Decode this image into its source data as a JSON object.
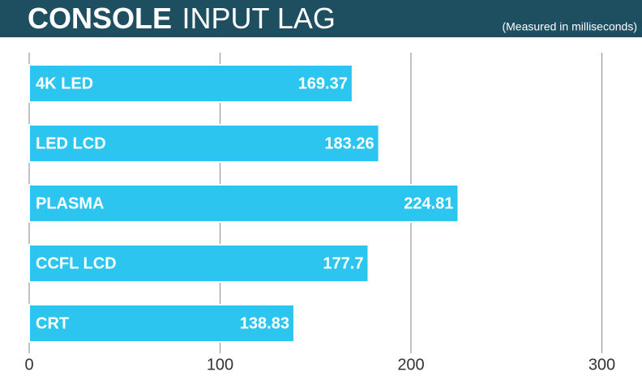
{
  "chart_data": {
    "type": "barh",
    "title_bold": "CONSOLE",
    "title": "INPUT LAG",
    "subtitle": "(Measured in milliseconds)",
    "categories": [
      "4K LED",
      "LED LCD",
      "PLASMA",
      "CCFL LCD",
      "CRT"
    ],
    "values": [
      169.37,
      183.26,
      224.81,
      177.7,
      138.83
    ],
    "color": "#2cc5f0",
    "xlim": [
      0,
      320
    ],
    "xticks": [
      0,
      100,
      200,
      300
    ],
    "grid": true
  }
}
